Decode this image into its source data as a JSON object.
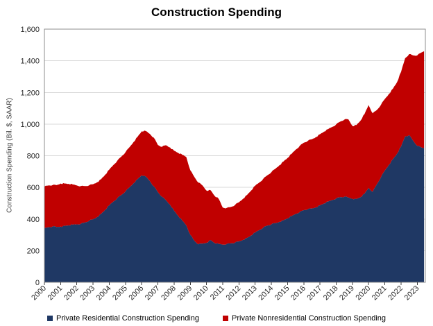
{
  "chart_data": {
    "type": "area",
    "stacked": true,
    "title": "Construction Spending",
    "xlabel": "",
    "ylabel": "Construction Spending (Bil. $, SAAR)",
    "xlim": [
      2000,
      2023.5
    ],
    "ylim": [
      0,
      1600
    ],
    "grid": true,
    "legend_position": "bottom",
    "y_tick_labels": [
      "0",
      "200",
      "400",
      "600",
      "800",
      "1,000",
      "1,200",
      "1,400",
      "1,600"
    ],
    "y_tick_values": [
      0,
      200,
      400,
      600,
      800,
      1000,
      1200,
      1400,
      1600
    ],
    "x_tick_labels": [
      "2000",
      "2001",
      "2002",
      "2003",
      "2004",
      "2005",
      "2006",
      "2007",
      "2008",
      "2009",
      "2010",
      "2011",
      "2012",
      "2013",
      "2014",
      "2015",
      "2016",
      "2017",
      "2018",
      "2019",
      "2020",
      "2021",
      "2022",
      "2023"
    ],
    "x_tick_values": [
      2000,
      2001,
      2002,
      2003,
      2004,
      2005,
      2006,
      2007,
      2008,
      2009,
      2010,
      2011,
      2012,
      2013,
      2014,
      2015,
      2016,
      2017,
      2018,
      2019,
      2020,
      2021,
      2022,
      2023
    ],
    "x": [
      2000,
      2000.25,
      2000.5,
      2000.75,
      2001,
      2001.25,
      2001.5,
      2001.75,
      2002,
      2002.25,
      2002.5,
      2002.75,
      2003,
      2003.25,
      2003.5,
      2003.75,
      2004,
      2004.25,
      2004.5,
      2004.75,
      2005,
      2005.25,
      2005.5,
      2005.75,
      2006,
      2006.25,
      2006.5,
      2006.75,
      2007,
      2007.25,
      2007.5,
      2007.75,
      2008,
      2008.25,
      2008.5,
      2008.75,
      2009,
      2009.25,
      2009.5,
      2009.75,
      2010,
      2010.25,
      2010.5,
      2010.75,
      2011,
      2011.25,
      2011.5,
      2011.75,
      2012,
      2012.25,
      2012.5,
      2012.75,
      2013,
      2013.25,
      2013.5,
      2013.75,
      2014,
      2014.25,
      2014.5,
      2014.75,
      2015,
      2015.25,
      2015.5,
      2015.75,
      2016,
      2016.25,
      2016.5,
      2016.75,
      2017,
      2017.25,
      2017.5,
      2017.75,
      2018,
      2018.25,
      2018.5,
      2018.75,
      2019,
      2019.25,
      2019.5,
      2019.75,
      2020,
      2020.25,
      2020.5,
      2020.75,
      2021,
      2021.25,
      2021.5,
      2021.75,
      2022,
      2022.25,
      2022.5,
      2022.75,
      2023,
      2023.25,
      2023.42
    ],
    "series": [
      {
        "name": "Private Residential Construction Spending",
        "color": "#1f3864",
        "values": [
          340,
          348,
          352,
          350,
          352,
          356,
          360,
          364,
          366,
          370,
          378,
          388,
          398,
          412,
          432,
          458,
          486,
          510,
          532,
          552,
          574,
          600,
          626,
          652,
          676,
          668,
          640,
          606,
          570,
          540,
          518,
          490,
          452,
          420,
          390,
          360,
          300,
          262,
          240,
          244,
          250,
          266,
          248,
          242,
          238,
          242,
          246,
          250,
          258,
          268,
          280,
          296,
          314,
          330,
          346,
          358,
          366,
          374,
          382,
          392,
          404,
          418,
          432,
          444,
          456,
          462,
          466,
          474,
          486,
          498,
          510,
          520,
          530,
          538,
          540,
          536,
          528,
          526,
          538,
          560,
          596,
          572,
          618,
          662,
          706,
          742,
          778,
          812,
          858,
          922,
          930,
          894,
          862,
          852,
          848
        ]
      },
      {
        "name": "Private Nonresidential Construction Spending",
        "color": "#c00000",
        "values": [
          265,
          264,
          262,
          264,
          272,
          268,
          262,
          254,
          246,
          238,
          230,
          224,
          222,
          220,
          220,
          222,
          226,
          231,
          237,
          243,
          248,
          254,
          261,
          268,
          278,
          288,
          298,
          308,
          298,
          316,
          348,
          362,
          380,
          398,
          416,
          432,
          408,
          404,
          390,
          368,
          330,
          316,
          298,
          286,
          234,
          228,
          230,
          238,
          248,
          260,
          272,
          284,
          296,
          300,
          308,
          318,
          330,
          344,
          358,
          372,
          382,
          394,
          406,
          418,
          426,
          432,
          438,
          444,
          450,
          454,
          458,
          462,
          468,
          478,
          488,
          494,
          460,
          468,
          484,
          504,
          524,
          496,
          470,
          458,
          452,
          448,
          446,
          452,
          472,
          494,
          512,
          540,
          572,
          600,
          612
        ]
      }
    ],
    "plot_border_color": "#8c8c8c",
    "gridline_color": "#d9d9d9",
    "tick_color": "#404040",
    "label_color": "#262626"
  }
}
